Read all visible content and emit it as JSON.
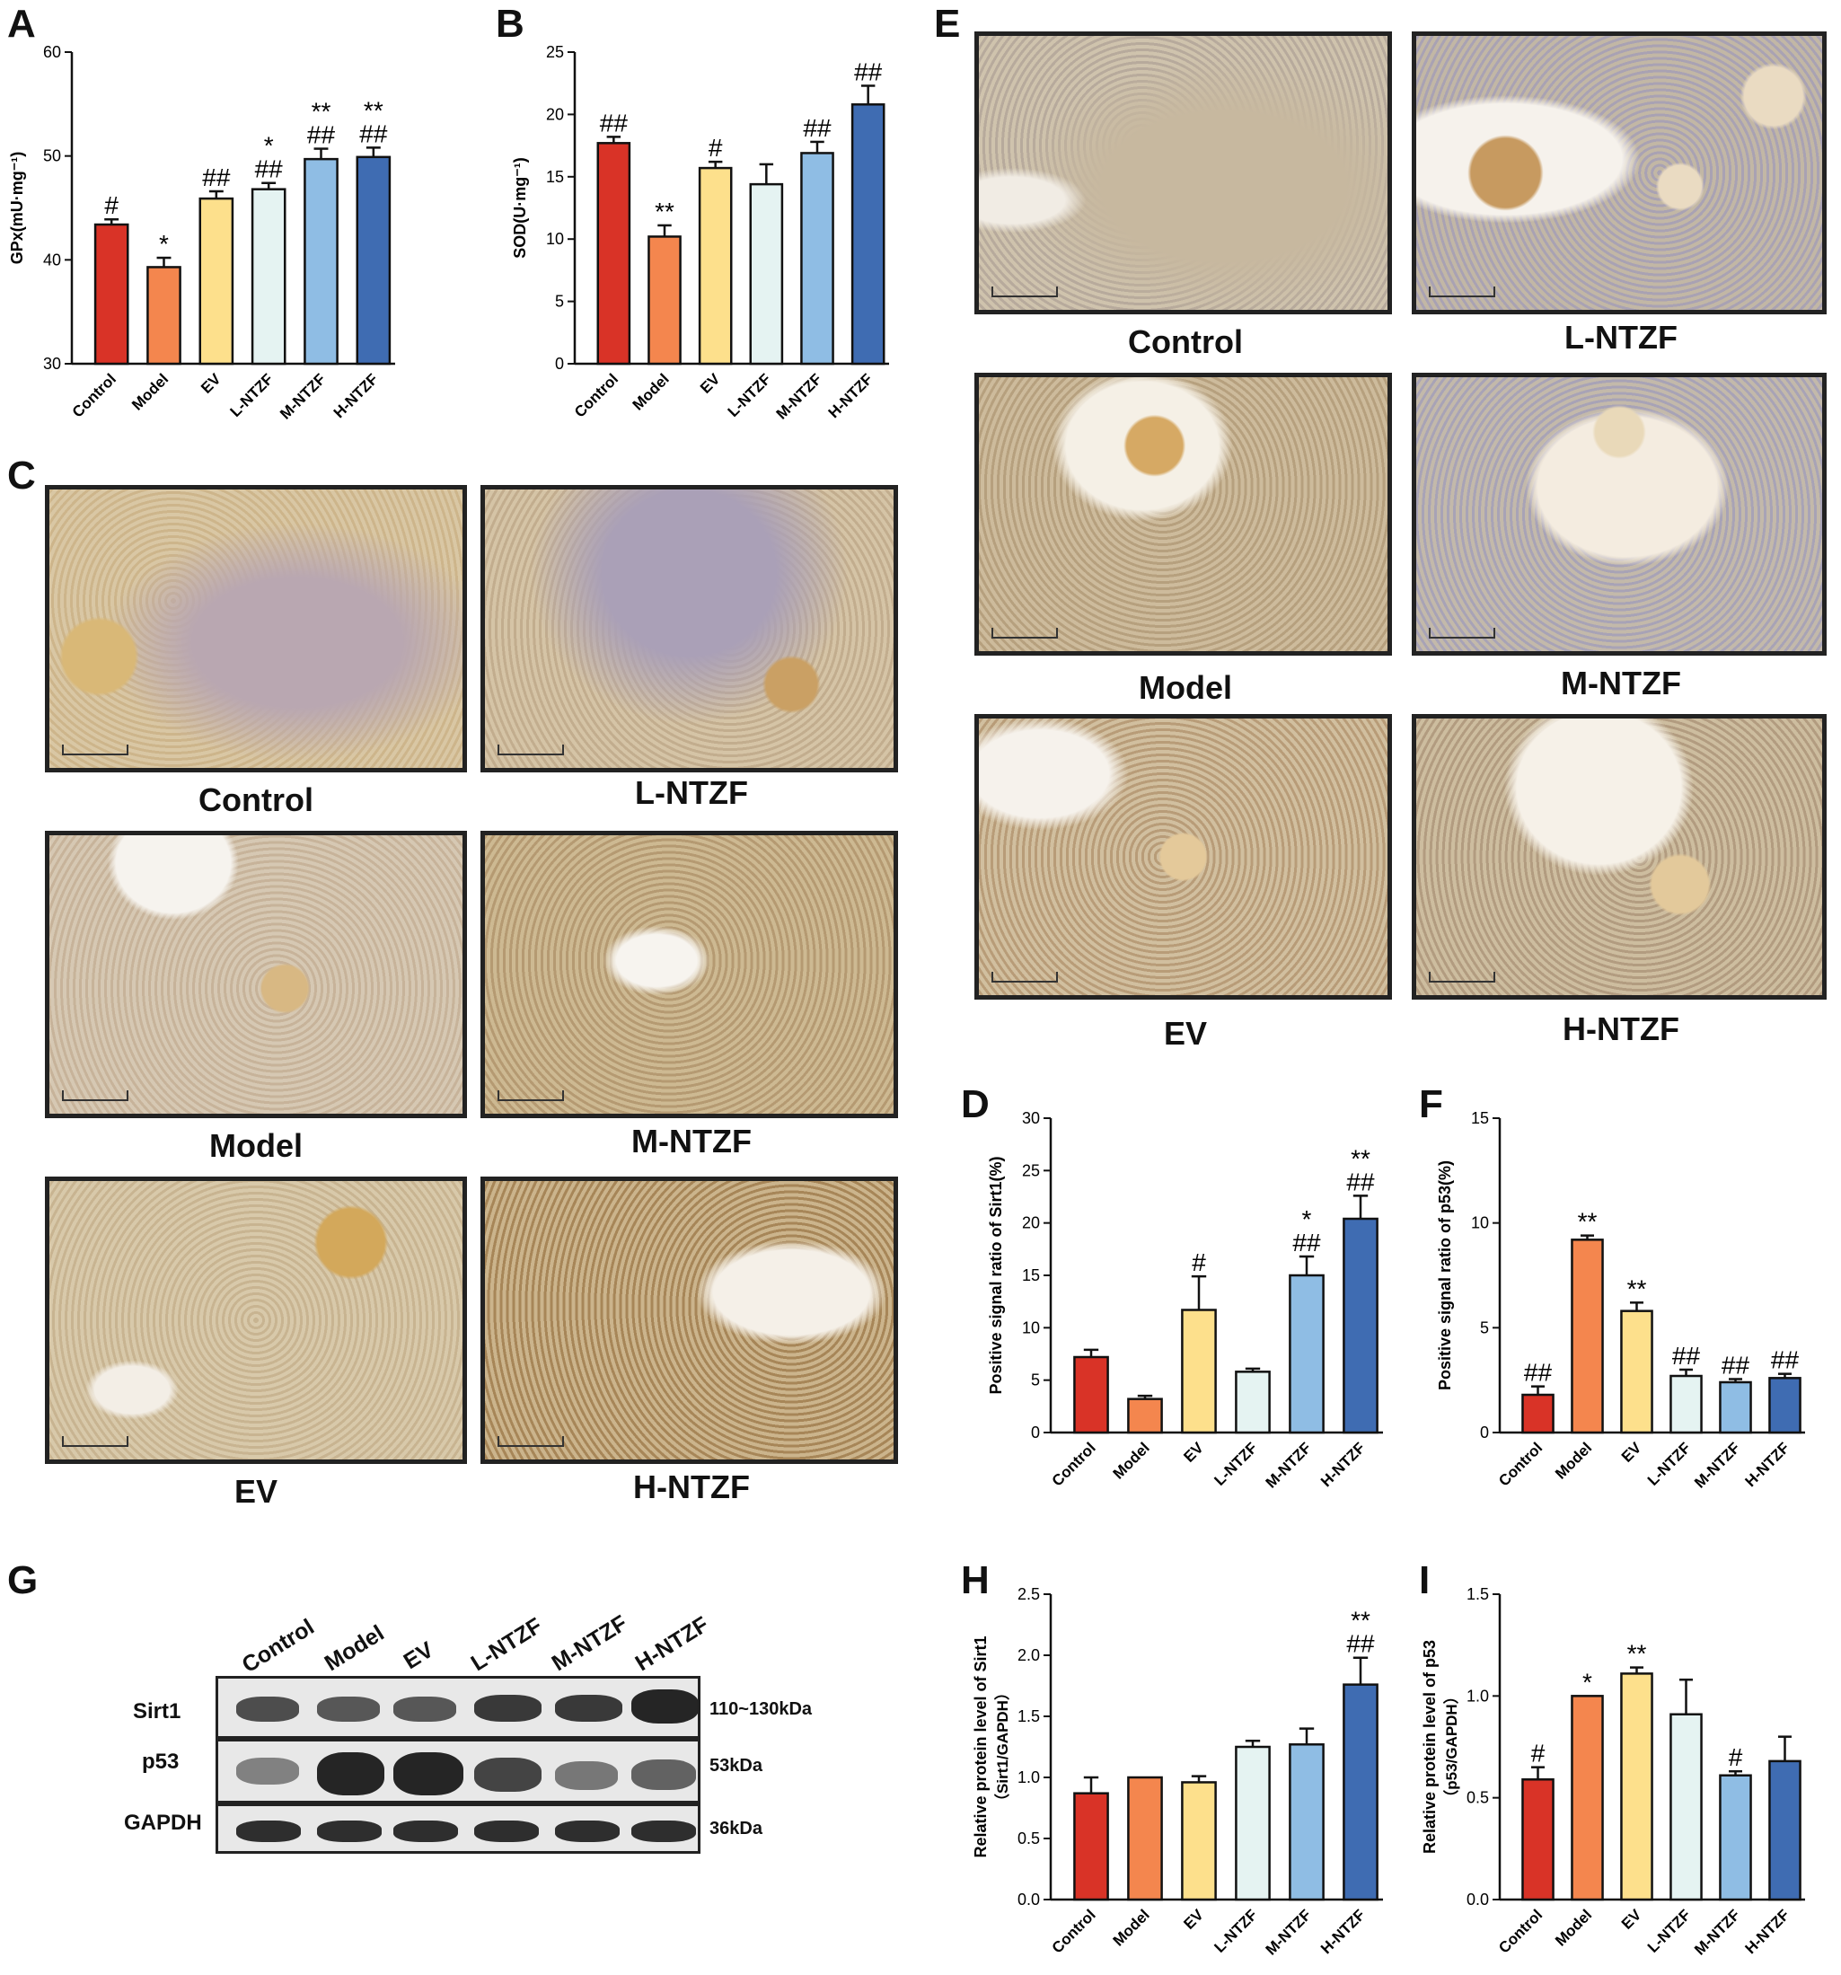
{
  "panels": {
    "A": "A",
    "B": "B",
    "C": "C",
    "D": "D",
    "E": "E",
    "F": "F",
    "G": "G",
    "H": "H",
    "I": "I"
  },
  "colors": {
    "Control": "#d93327",
    "Model": "#f4864e",
    "EV": "#fde08c",
    "L-NTZF": "#e5f3f2",
    "M-NTZF": "#8fbde4",
    "H-NTZF": "#3f6cb2"
  },
  "chart_data": [
    {
      "id": "A",
      "type": "bar",
      "categories": [
        "Control",
        "Model",
        "EV",
        "L-NTZF",
        "M-NTZF",
        "H-NTZF"
      ],
      "values": [
        43.4,
        39.3,
        45.9,
        46.8,
        49.7,
        49.9
      ],
      "errors": [
        0.5,
        0.9,
        0.7,
        0.6,
        1.0,
        0.9
      ],
      "annotations": [
        [
          "#"
        ],
        [
          "*"
        ],
        [
          "##"
        ],
        [
          "*",
          "##"
        ],
        [
          "**",
          "##"
        ],
        [
          "**",
          "##"
        ]
      ],
      "ylabel": "GPx(mU·mg⁻¹)",
      "ylim": [
        30,
        60
      ],
      "yticks": [
        30,
        40,
        50,
        60
      ]
    },
    {
      "id": "B",
      "type": "bar",
      "categories": [
        "Control",
        "Model",
        "EV",
        "L-NTZF",
        "M-NTZF",
        "H-NTZF"
      ],
      "values": [
        17.7,
        10.2,
        15.7,
        14.4,
        16.9,
        20.8
      ],
      "errors": [
        0.5,
        0.9,
        0.5,
        1.6,
        0.9,
        1.5
      ],
      "annotations": [
        [
          "##"
        ],
        [
          "**"
        ],
        [
          "#"
        ],
        [],
        [
          "##"
        ],
        [
          "##"
        ]
      ],
      "ylabel": "SOD(U·mg⁻¹)",
      "ylim": [
        0,
        25
      ],
      "yticks": [
        0,
        5,
        10,
        15,
        20,
        25
      ]
    },
    {
      "id": "D",
      "type": "bar",
      "categories": [
        "Control",
        "Model",
        "EV",
        "L-NTZF",
        "M-NTZF",
        "H-NTZF"
      ],
      "values": [
        7.2,
        3.2,
        11.7,
        5.8,
        15.0,
        20.4
      ],
      "errors": [
        0.7,
        0.3,
        3.2,
        0.3,
        1.8,
        2.2
      ],
      "annotations": [
        [],
        [],
        [
          "#"
        ],
        [],
        [
          "*",
          "##"
        ],
        [
          "**",
          "##"
        ]
      ],
      "ylabel": "Positive signal ratio of Sirt1(%)",
      "ylim": [
        0,
        30
      ],
      "yticks": [
        0,
        5,
        10,
        15,
        20,
        25,
        30
      ]
    },
    {
      "id": "F",
      "type": "bar",
      "categories": [
        "Control",
        "Model",
        "EV",
        "L-NTZF",
        "M-NTZF",
        "H-NTZF"
      ],
      "values": [
        1.8,
        9.2,
        5.8,
        2.7,
        2.4,
        2.6
      ],
      "errors": [
        0.4,
        0.2,
        0.4,
        0.3,
        0.15,
        0.2
      ],
      "annotations": [
        [
          "##"
        ],
        [
          "**"
        ],
        [
          "**"
        ],
        [
          "##"
        ],
        [
          "##"
        ],
        [
          "##"
        ]
      ],
      "ylabel": "Positive signal ratio of p53(%)",
      "ylim": [
        0,
        15
      ],
      "yticks": [
        0,
        5,
        10,
        15
      ]
    },
    {
      "id": "H",
      "type": "bar",
      "categories": [
        "Control",
        "Model",
        "EV",
        "L-NTZF",
        "M-NTZF",
        "H-NTZF"
      ],
      "values": [
        0.87,
        1.0,
        0.96,
        1.25,
        1.27,
        1.76
      ],
      "errors": [
        0.13,
        0.0,
        0.05,
        0.05,
        0.13,
        0.22
      ],
      "annotations": [
        [],
        [],
        [],
        [],
        [],
        [
          "**",
          "##"
        ]
      ],
      "ylabel": "Relative protein level of Sirt1",
      "ylabel2": "（Sirt1/GAPDH）",
      "ylim": [
        0,
        2.5
      ],
      "yticks": [
        "0.0",
        "0.5",
        "1.0",
        "1.5",
        "2.0",
        "2.5"
      ]
    },
    {
      "id": "I",
      "type": "bar",
      "categories": [
        "Control",
        "Model",
        "EV",
        "L-NTZF",
        "M-NTZF",
        "H-NTZF"
      ],
      "values": [
        0.59,
        1.0,
        1.11,
        0.91,
        0.61,
        0.68
      ],
      "errors": [
        0.06,
        0.0,
        0.03,
        0.17,
        0.02,
        0.12
      ],
      "annotations": [
        [
          "#"
        ],
        [
          "*"
        ],
        [
          "**"
        ],
        [],
        [
          "#"
        ],
        []
      ],
      "ylabel": "Relative protein level of p53",
      "ylabel2": "（p53/GAPDH）",
      "ylim": [
        0,
        1.5
      ],
      "yticks": [
        "0.0",
        "0.5",
        "1.0",
        "1.5"
      ]
    }
  ],
  "micrographs_C": {
    "labels": [
      "Control",
      "L-NTZF",
      "Model",
      "M-NTZF",
      "EV",
      "H-NTZF"
    ]
  },
  "micrographs_E": {
    "labels": [
      "Control",
      "L-NTZF",
      "Model",
      "M-NTZF",
      "EV",
      "H-NTZF"
    ]
  },
  "western_blot": {
    "lanes": [
      "Control",
      "Model",
      "EV",
      "L-NTZF",
      "M-NTZF",
      "H-NTZF"
    ],
    "rows": [
      {
        "name": "Sirt1",
        "kda": "110~130kDa"
      },
      {
        "name": "p53",
        "kda": "53kDa"
      },
      {
        "name": "GAPDH",
        "kda": "36kDa"
      }
    ]
  }
}
